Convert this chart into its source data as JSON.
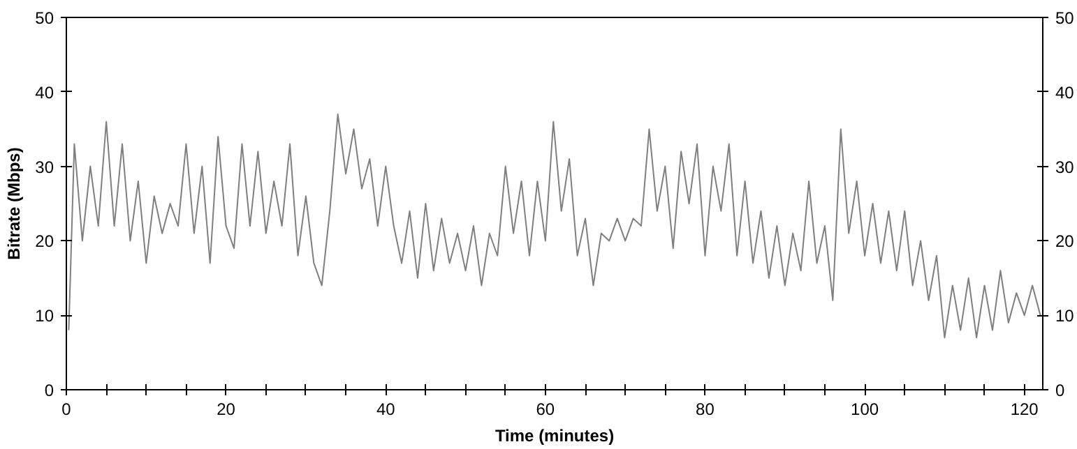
{
  "chart_data": {
    "type": "line",
    "xlabel": "Time (minutes)",
    "ylabel": "Bitrate (Mbps)",
    "xlim": [
      0,
      122.3
    ],
    "ylim": [
      0,
      50
    ],
    "y2lim": [
      0,
      50
    ],
    "xticks": [
      0,
      {
        "value": 5,
        "label": null
      },
      {
        "value": 10,
        "label": null
      },
      {
        "value": 15,
        "label": null
      },
      20,
      {
        "value": 25,
        "label": null
      },
      {
        "value": 30,
        "label": null
      },
      {
        "value": 35,
        "label": null
      },
      40,
      {
        "value": 45,
        "label": null
      },
      {
        "value": 50,
        "label": null
      },
      {
        "value": 55,
        "label": null
      },
      60,
      {
        "value": 65,
        "label": null
      },
      {
        "value": 70,
        "label": null
      },
      {
        "value": 75,
        "label": null
      },
      80,
      {
        "value": 85,
        "label": null
      },
      {
        "value": 90,
        "label": null
      },
      {
        "value": 95,
        "label": null
      },
      100,
      {
        "value": 105,
        "label": null
      },
      {
        "value": 110,
        "label": null
      },
      {
        "value": 115,
        "label": null
      },
      120
    ],
    "yticks": [
      0,
      10,
      20,
      30,
      40,
      50
    ],
    "y2ticks": [
      0,
      10,
      20,
      30,
      40,
      50
    ],
    "grid": false,
    "series": [
      {
        "color": "#7f7f7f",
        "x": [
          0.3,
          1,
          2,
          3,
          4,
          5,
          6,
          7,
          8,
          9,
          10,
          11,
          12,
          13,
          14,
          15,
          16,
          17,
          18,
          19,
          20,
          21,
          22,
          23,
          24,
          25,
          26,
          27,
          28,
          29,
          30,
          31,
          32,
          33,
          34,
          35,
          36,
          37,
          38,
          39,
          40,
          41,
          42,
          43,
          44,
          45,
          46,
          47,
          48,
          49,
          50,
          51,
          52,
          53,
          54,
          55,
          56,
          57,
          58,
          59,
          60,
          61,
          62,
          63,
          64,
          65,
          66,
          67,
          68,
          69,
          70,
          71,
          72,
          73,
          74,
          75,
          76,
          77,
          78,
          79,
          80,
          81,
          82,
          83,
          84,
          85,
          86,
          87,
          88,
          89,
          90,
          91,
          92,
          93,
          94,
          95,
          96,
          97,
          98,
          99,
          100,
          101,
          102,
          103,
          104,
          105,
          106,
          107,
          108,
          109,
          110,
          111,
          112,
          113,
          114,
          115,
          116,
          117,
          118,
          119,
          120,
          121,
          122
        ],
        "values": [
          8,
          33,
          20,
          30,
          22,
          36,
          22,
          33,
          20,
          28,
          17,
          26,
          21,
          25,
          22,
          33,
          21,
          30,
          17,
          34,
          22,
          19,
          33,
          22,
          32,
          21,
          28,
          22,
          33,
          18,
          26,
          17,
          14,
          24,
          37,
          29,
          35,
          27,
          31,
          22,
          30,
          22,
          17,
          24,
          15,
          25,
          16,
          23,
          17,
          21,
          16,
          22,
          14,
          21,
          18,
          30,
          21,
          28,
          18,
          28,
          20,
          36,
          24,
          31,
          18,
          23,
          14,
          21,
          20,
          23,
          20,
          23,
          22,
          35,
          24,
          30,
          19,
          32,
          25,
          33,
          18,
          30,
          24,
          33,
          18,
          28,
          17,
          24,
          15,
          22,
          14,
          21,
          16,
          28,
          17,
          22,
          12,
          35,
          21,
          28,
          18,
          25,
          17,
          24,
          16,
          24,
          14,
          20,
          12,
          18,
          7,
          14,
          8,
          15,
          7,
          14,
          8,
          16,
          9,
          13,
          10,
          14,
          10
        ]
      }
    ]
  }
}
